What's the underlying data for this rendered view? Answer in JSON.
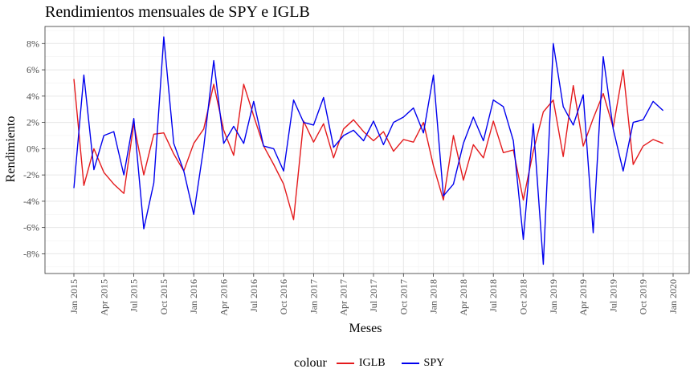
{
  "chart_data": {
    "type": "line",
    "title": "Rendimientos mensuales de SPY e IGLB",
    "xlabel": "Meses",
    "ylabel": "Rendimiento",
    "x_tick_labels": [
      "Jan 2015",
      "Apr 2015",
      "Jul 2015",
      "Oct 2015",
      "Jan 2016",
      "Apr 2016",
      "Jul 2016",
      "Oct 2016",
      "Jan 2017",
      "Apr 2017",
      "Jul 2017",
      "Oct 2017",
      "Jan 2018",
      "Apr 2018",
      "Jul 2018",
      "Oct 2018",
      "Jan 2019",
      "Apr 2019",
      "Jul 2019",
      "Oct 2019",
      "Jan 2020"
    ],
    "y_tick_labels": [
      "-8%",
      "-6%",
      "-4%",
      "-2%",
      "0%",
      "2%",
      "4%",
      "6%",
      "8%"
    ],
    "ylim": [
      -9.5,
      9.3
    ],
    "grid": true,
    "legend_title": "colour",
    "legend_position": "bottom",
    "x": [
      "Jan 2015",
      "Feb 2015",
      "Mar 2015",
      "Apr 2015",
      "May 2015",
      "Jun 2015",
      "Jul 2015",
      "Aug 2015",
      "Sep 2015",
      "Oct 2015",
      "Nov 2015",
      "Dec 2015",
      "Jan 2016",
      "Feb 2016",
      "Mar 2016",
      "Apr 2016",
      "May 2016",
      "Jun 2016",
      "Jul 2016",
      "Aug 2016",
      "Sep 2016",
      "Oct 2016",
      "Nov 2016",
      "Dec 2016",
      "Jan 2017",
      "Feb 2017",
      "Mar 2017",
      "Apr 2017",
      "May 2017",
      "Jun 2017",
      "Jul 2017",
      "Aug 2017",
      "Sep 2017",
      "Oct 2017",
      "Nov 2017",
      "Dec 2017",
      "Jan 2018",
      "Feb 2018",
      "Mar 2018",
      "Apr 2018",
      "May 2018",
      "Jun 2018",
      "Jul 2018",
      "Aug 2018",
      "Sep 2018",
      "Oct 2018",
      "Nov 2018",
      "Dec 2018",
      "Jan 2019",
      "Feb 2019",
      "Mar 2019",
      "Apr 2019",
      "May 2019",
      "Jun 2019",
      "Jul 2019",
      "Aug 2019",
      "Sep 2019",
      "Oct 2019",
      "Nov 2019",
      "Dec 2019"
    ],
    "series": [
      {
        "name": "IGLB",
        "color": "#e41a1c",
        "values": [
          5.3,
          -2.8,
          0.0,
          -1.8,
          -2.7,
          -3.4,
          1.9,
          -2.0,
          1.1,
          1.2,
          -0.4,
          -1.7,
          0.4,
          1.5,
          4.9,
          1.4,
          -0.5,
          4.9,
          2.5,
          0.2,
          -1.2,
          -2.7,
          -5.4,
          2.1,
          0.5,
          1.9,
          -0.7,
          1.5,
          2.2,
          1.3,
          0.6,
          1.3,
          -0.2,
          0.7,
          0.5,
          2.0,
          -1.3,
          -3.9,
          1.0,
          -2.4,
          0.3,
          -0.7,
          2.1,
          -0.3,
          -0.1,
          -3.9,
          -0.2,
          2.8,
          3.7,
          -0.6,
          4.8,
          0.2,
          2.3,
          4.2,
          1.6,
          6.0,
          -1.2,
          0.2,
          0.7,
          0.4
        ]
      },
      {
        "name": "SPY",
        "color": "#0000ee",
        "values": [
          -3.0,
          5.6,
          -1.6,
          1.0,
          1.3,
          -2.0,
          2.3,
          -6.1,
          -2.6,
          8.5,
          0.4,
          -1.7,
          -5.0,
          0.1,
          6.7,
          0.4,
          1.7,
          0.4,
          3.6,
          0.2,
          0.0,
          -1.7,
          3.7,
          2.0,
          1.8,
          3.9,
          0.1,
          1.0,
          1.4,
          0.6,
          2.1,
          0.3,
          2.0,
          2.4,
          3.1,
          1.2,
          5.6,
          -3.6,
          -2.7,
          0.4,
          2.4,
          0.6,
          3.7,
          3.2,
          0.6,
          -6.9,
          1.9,
          -8.8,
          8.0,
          3.2,
          1.8,
          4.1,
          -6.4,
          7.0,
          1.5,
          -1.7,
          2.0,
          2.2,
          3.6,
          2.9
        ]
      }
    ]
  },
  "legend": {
    "title": "colour",
    "items": [
      {
        "label": "IGLB",
        "color": "#e41a1c"
      },
      {
        "label": "SPY",
        "color": "#0000ee"
      }
    ]
  }
}
